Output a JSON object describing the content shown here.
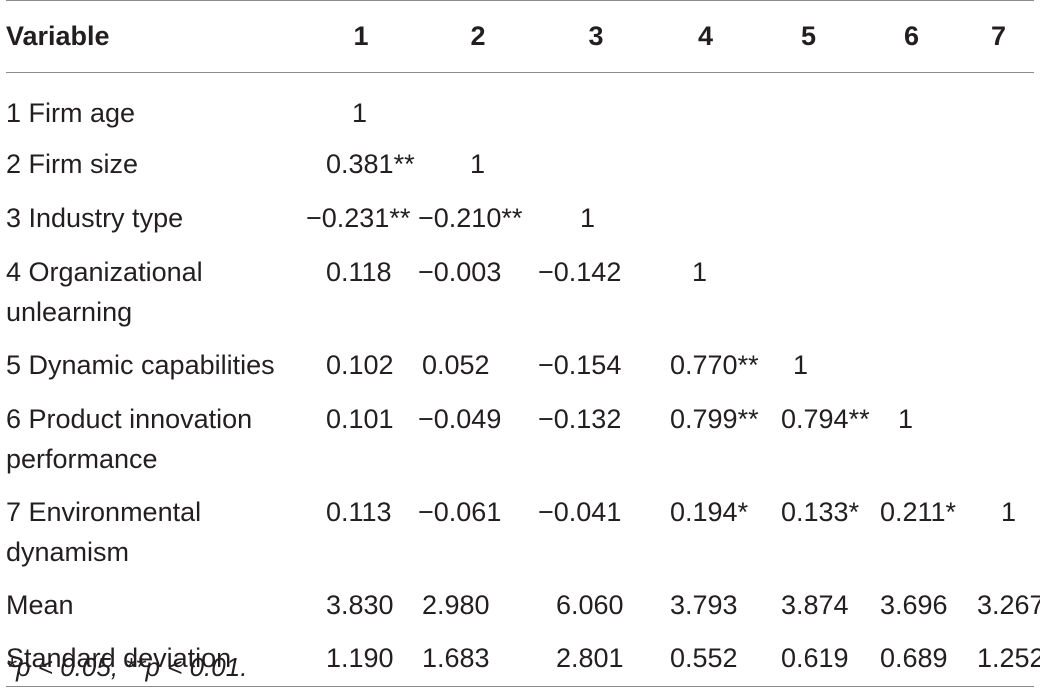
{
  "table": {
    "headers": [
      "Variable",
      "1",
      "2",
      "3",
      "4",
      "5",
      "6",
      "7"
    ],
    "rows": [
      {
        "label": "1 Firm age",
        "cells": [
          "1",
          "",
          "",
          "",
          "",
          "",
          ""
        ]
      },
      {
        "label": "2 Firm size",
        "cells": [
          "0.381**",
          "1",
          "",
          "",
          "",
          "",
          ""
        ]
      },
      {
        "label": "3 Industry type",
        "cells": [
          "−0.231**",
          "−0.210**",
          "1",
          "",
          "",
          "",
          ""
        ]
      },
      {
        "label": "4 Organizational unlearning",
        "cells": [
          "0.118",
          "−0.003",
          "−0.142",
          "1",
          "",
          "",
          ""
        ]
      },
      {
        "label": "5 Dynamic capabilities",
        "cells": [
          "0.102",
          "0.052",
          "−0.154",
          "0.770**",
          "1",
          "",
          ""
        ]
      },
      {
        "label": "6 Product innovation performance",
        "cells": [
          "0.101",
          "−0.049",
          "−0.132",
          "0.799**",
          "0.794**",
          "1",
          ""
        ]
      },
      {
        "label": "7 Environmental dynamism",
        "cells": [
          "0.113",
          "−0.061",
          "−0.041",
          "0.194*",
          "0.133*",
          "0.211*",
          "1"
        ]
      },
      {
        "label": "Mean",
        "cells": [
          "3.830",
          "2.980",
          "6.060",
          "3.793",
          "3.874",
          "3.696",
          "3.267"
        ]
      },
      {
        "label": "Standard deviation",
        "cells": [
          "1.190",
          "1.683",
          "2.801",
          "0.552",
          "0.619",
          "0.689",
          "1.252"
        ]
      }
    ]
  },
  "footnote": "*p < 0.05, **p < 0.01."
}
